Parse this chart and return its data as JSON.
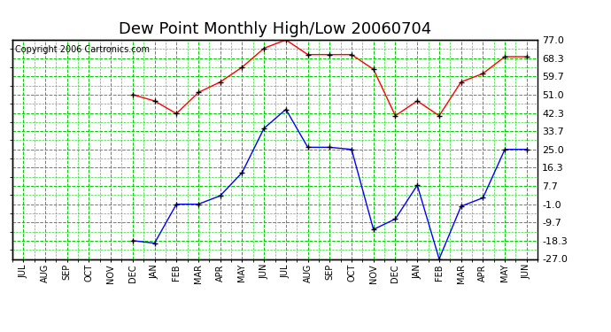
{
  "title": "Dew Point Monthly High/Low 20060704",
  "copyright": "Copyright 2006 Cartronics.com",
  "x_labels": [
    "JUL",
    "AUG",
    "SEP",
    "OCT",
    "NOV",
    "DEC",
    "JAN",
    "FEB",
    "MAR",
    "APR",
    "MAY",
    "JUN",
    "JUL",
    "AUG",
    "SEP",
    "OCT",
    "NOV",
    "DEC",
    "JAN",
    "FEB",
    "MAR",
    "APR",
    "MAY",
    "JUN"
  ],
  "high_raw": [
    null,
    null,
    null,
    null,
    null,
    51.0,
    48.0,
    42.0,
    52.0,
    57.0,
    64.0,
    73.0,
    77.0,
    70.0,
    70.0,
    70.0,
    63.0,
    41.0,
    48.0,
    41.0,
    57.0,
    61.0,
    69.0,
    69.0
  ],
  "low_raw": [
    null,
    null,
    null,
    null,
    null,
    -18.3,
    -19.5,
    -1.0,
    -1.0,
    3.0,
    14.0,
    35.0,
    44.0,
    26.0,
    26.0,
    25.0,
    -13.0,
    -8.0,
    8.0,
    -27.0,
    -2.0,
    2.0,
    25.0,
    25.0
  ],
  "high_color": "#ff0000",
  "low_color": "#0000ff",
  "bg_color": "#ffffff",
  "grid_color": "#00cc00",
  "yticks": [
    77.0,
    68.3,
    59.7,
    51.0,
    42.3,
    33.7,
    25.0,
    16.3,
    7.7,
    -1.0,
    -9.7,
    -18.3,
    -27.0
  ],
  "ylim": [
    -27.0,
    77.0
  ],
  "title_fontsize": 13,
  "copyright_fontsize": 7,
  "figwidth": 6.9,
  "figheight": 3.75,
  "dpi": 100
}
